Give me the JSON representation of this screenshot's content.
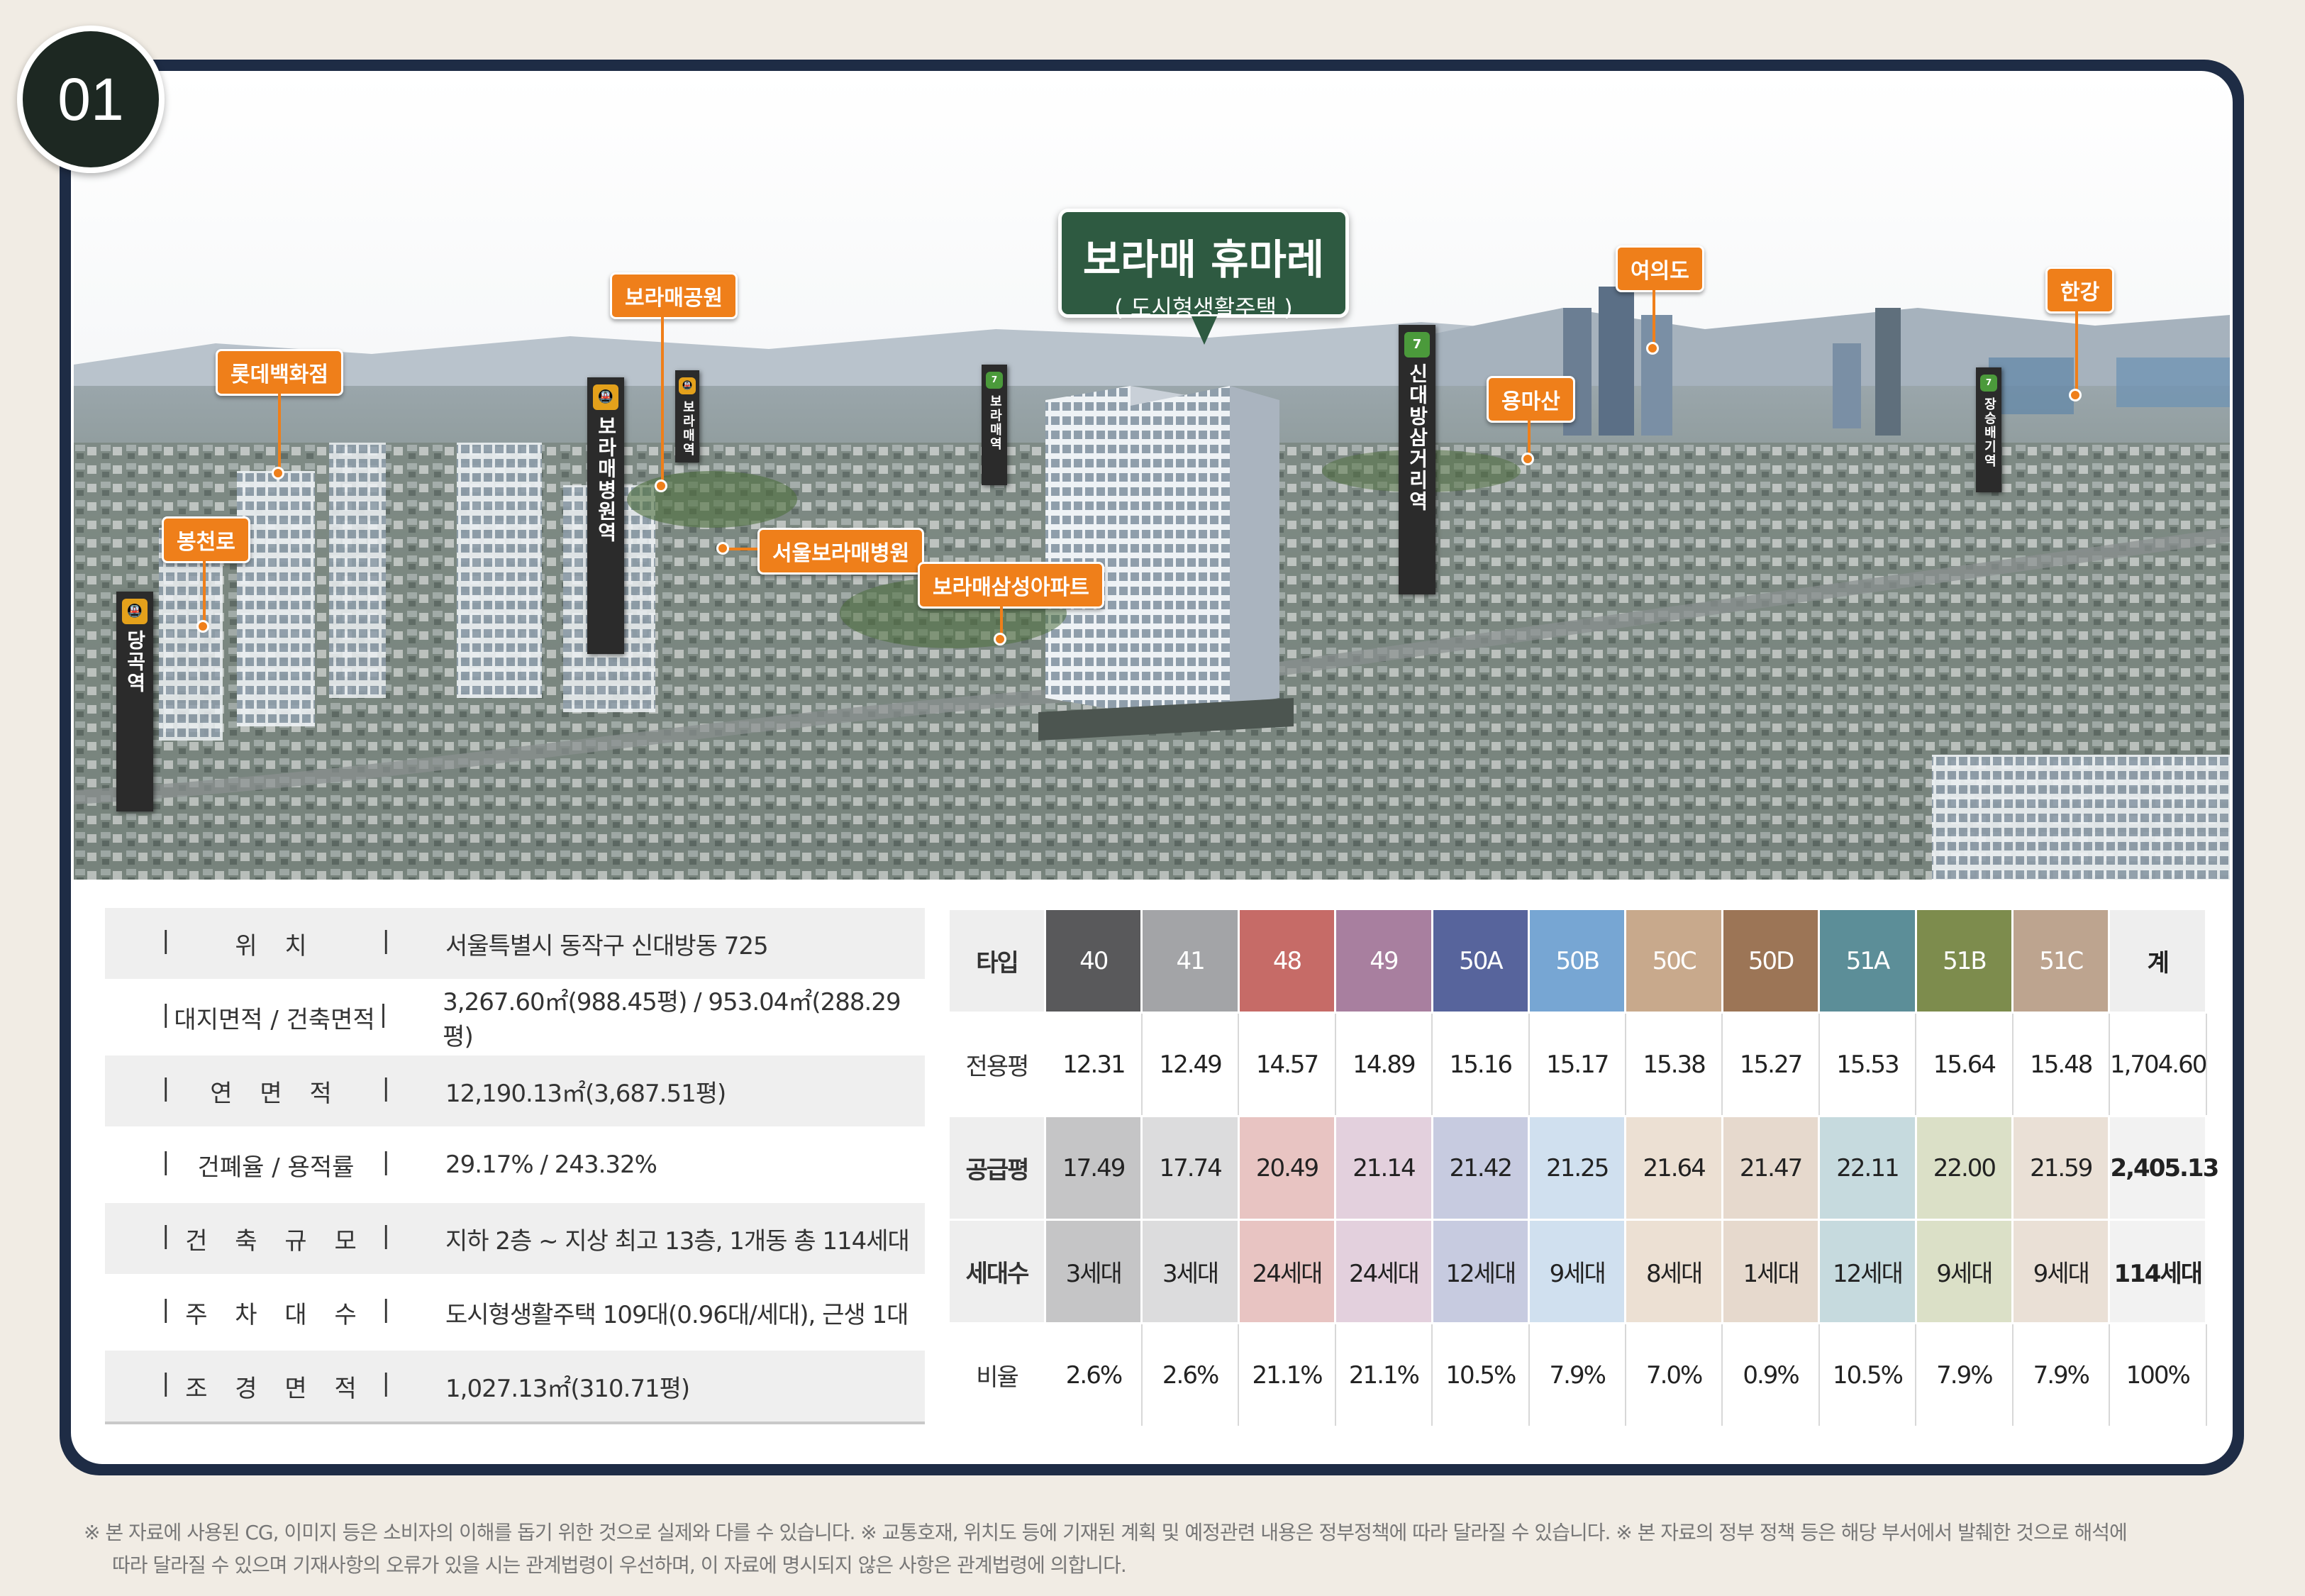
{
  "badge": "01",
  "main_title": {
    "name": "보라매 휴마레",
    "sub": "( 도시형생활주택 )"
  },
  "callouts": {
    "lotte": "롯데백화점",
    "boramae_park": "보라매공원",
    "bongcheon": "봉천로",
    "seoul_boramae_hospital": "서울보라매병원",
    "boramae_samsung": "보라매삼성아파트",
    "yongmasan": "용마산",
    "yeouido": "여의도",
    "hangang": "한강"
  },
  "stations": {
    "dangok": {
      "line": "신림선",
      "name": "당곡역"
    },
    "boramae_hospital": {
      "line": "신림선",
      "name": "보라매병원역"
    },
    "boramae": {
      "line": "7호선",
      "name": "보라매역"
    },
    "sindaebang": {
      "line": "7호선",
      "name": "신대방삼거리역"
    },
    "right": {
      "line": "7호선",
      "name": "장승배기역"
    }
  },
  "info": [
    {
      "label": "위 치",
      "value": "서울특별시 동작구 신대방동 725"
    },
    {
      "label": "대지면적 / 건축면적",
      "value": "3,267.60㎡(988.45평) / 953.04㎡(288.29평)"
    },
    {
      "label": "연 면 적",
      "value": "12,190.13㎡(3,687.51평)"
    },
    {
      "label": "건폐율  /  용적률",
      "value": "29.17% / 243.32%"
    },
    {
      "label": "건 축 규 모",
      "value": "지하 2층 ~ 지상 최고 13층, 1개동 총 114세대"
    },
    {
      "label": "주 차 대 수",
      "value": "도시형생활주택 109대(0.96대/세대), 근생 1대"
    },
    {
      "label": "조 경 면 적",
      "value": "1,027.13㎡(310.71평)"
    }
  ],
  "types_table": {
    "header_label": "타입",
    "total_label": "계",
    "types": [
      {
        "name": "40",
        "color": "#59595b",
        "light": "#c5c5c6"
      },
      {
        "name": "41",
        "color": "#a3a4a7",
        "light": "#dcdcdd"
      },
      {
        "name": "48",
        "color": "#c66b67",
        "light": "#e8c4c2"
      },
      {
        "name": "49",
        "color": "#a87f9f",
        "light": "#e3d0dd"
      },
      {
        "name": "50A",
        "color": "#57649c",
        "light": "#c7cbe0"
      },
      {
        "name": "50B",
        "color": "#77a6d3",
        "light": "#d0e0ef"
      },
      {
        "name": "50C",
        "color": "#c8a98c",
        "light": "#ece0d3"
      },
      {
        "name": "50D",
        "color": "#9c7556",
        "light": "#e6d9cd"
      },
      {
        "name": "51A",
        "color": "#5c8e98",
        "light": "#c6dade"
      },
      {
        "name": "51B",
        "color": "#7d8c4d",
        "light": "#dbe0c7"
      },
      {
        "name": "51C",
        "color": "#bda48f",
        "light": "#eae0d6"
      }
    ],
    "rows": [
      {
        "label": "전용평",
        "style": "white",
        "values": [
          "12.31",
          "12.49",
          "14.57",
          "14.89",
          "15.16",
          "15.17",
          "15.38",
          "15.27",
          "15.53",
          "15.64",
          "15.48"
        ],
        "total": "1,704.60"
      },
      {
        "label": "공급평",
        "style": "tint",
        "values": [
          "17.49",
          "17.74",
          "20.49",
          "21.14",
          "21.42",
          "21.25",
          "21.64",
          "21.47",
          "22.11",
          "22.00",
          "21.59"
        ],
        "total": "2,405.13"
      },
      {
        "label": "세대수",
        "style": "tint",
        "values": [
          "3세대",
          "3세대",
          "24세대",
          "24세대",
          "12세대",
          "9세대",
          "8세대",
          "1세대",
          "12세대",
          "9세대",
          "9세대"
        ],
        "total": "114세대"
      },
      {
        "label": "비율",
        "style": "white",
        "values": [
          "2.6%",
          "2.6%",
          "21.1%",
          "21.1%",
          "10.5%",
          "7.9%",
          "7.0%",
          "0.9%",
          "10.5%",
          "7.9%",
          "7.9%"
        ],
        "total": "100%"
      }
    ]
  },
  "footnote": {
    "line1": "※ 본 자료에 사용된 CG, 이미지 등은 소비자의 이해를 돕기 위한 것으로 실제와 다를 수 있습니다. ※ 교통호재, 위치도 등에 기재된 계획 및 예정관련 내용은 정부정책에 따라 달라질 수 있습니다. ※ 본 자료의 정부 정책 등은 해당 부서에서 발췌한 것으로 해석에",
    "line2": "따라 달라질 수 있으며 기재사항의 오류가 있을 시는 관계법령이 우선하며, 이 자료에 명시되지 않은 사항은 관계법령에 의합니다."
  }
}
